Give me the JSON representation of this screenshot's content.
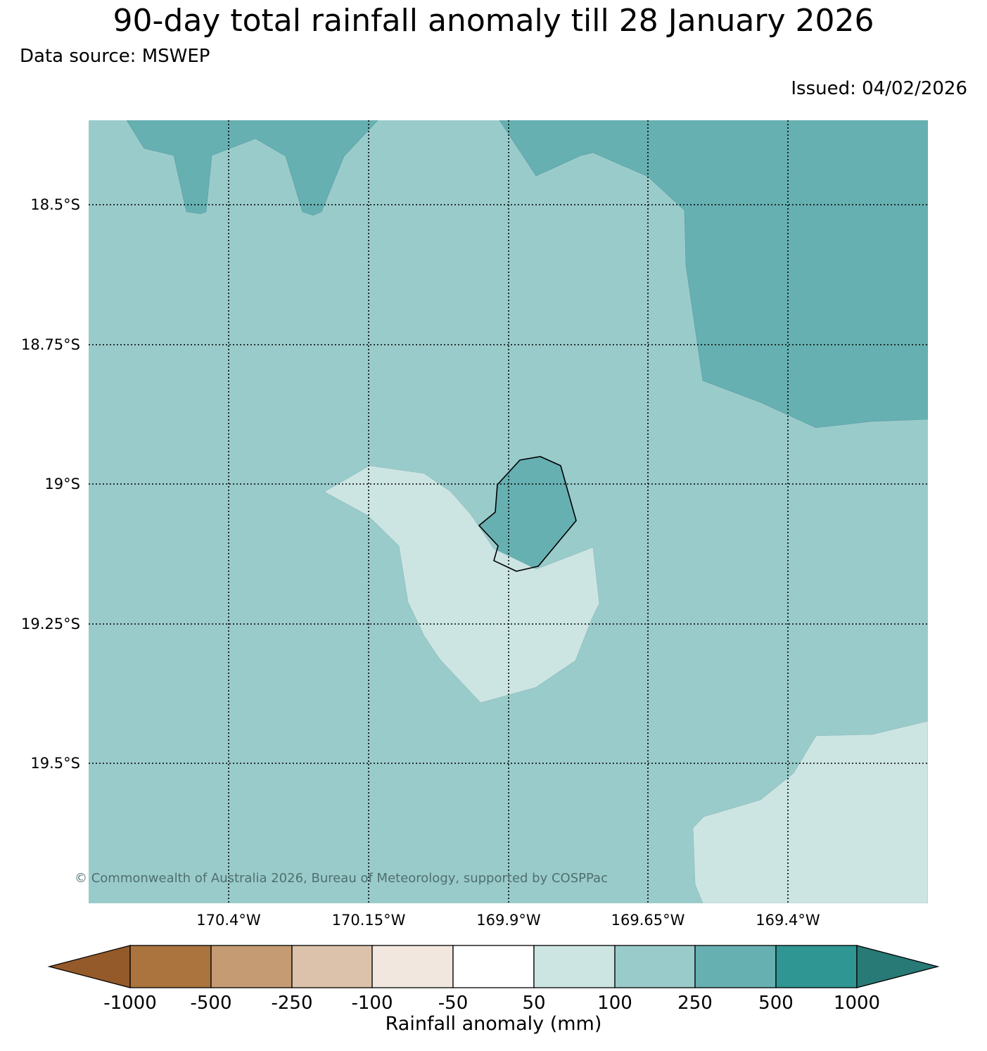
{
  "title": "90-day total rainfall anomaly till 28 January 2026",
  "data_source": "Data source: MSWEP",
  "issued": "Issued: 04/02/2026",
  "copyright": "© Commonwealth of Australia 2026, Bureau of Meteorology, supported by COSPPac",
  "map": {
    "latitude_labels": [
      "18.5°S",
      "18.75°S",
      "19°S",
      "19.25°S",
      "19.5°S"
    ],
    "longitude_labels": [
      "170.4°W",
      "170.15°W",
      "169.9°W",
      "169.65°W",
      "169.4°W"
    ],
    "gridlines": "dotted",
    "background_band": "100 to 250",
    "colors": {
      "50_to_100": "#cce5e3",
      "100_to_250": "#9acbcb",
      "250_to_500": "#66b0b2",
      "coastline": "#000000"
    }
  },
  "colorbar": {
    "title": "Rainfall anomaly (mm)",
    "tick_labels": [
      "-1000",
      "-500",
      "-250",
      "-100",
      "-50",
      "50",
      "100",
      "250",
      "500",
      "1000"
    ],
    "colors": [
      "#945a2a",
      "#ab743e",
      "#c59b73",
      "#dcc2aa",
      "#f2e7de",
      "#ffffff",
      "#cce5e3",
      "#9acbcb",
      "#66b0b2",
      "#2f9693",
      "#287a76"
    ]
  }
}
